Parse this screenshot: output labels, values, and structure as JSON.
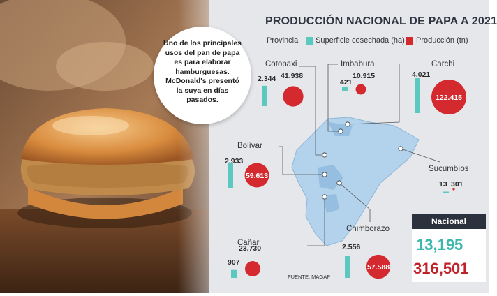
{
  "title": "PRODUCCIÓN NACIONAL DE PAPA  A 2021",
  "legend": {
    "provincia_label": "Provincia",
    "superficie_label": "Superficie cosechada (ha)",
    "produccion_label": "Producción (tn)"
  },
  "colors": {
    "superficie": "#5cc9c0",
    "produccion": "#d42a2f",
    "nacional_superficie": "#3cb7ad",
    "nacional_produccion": "#c0222a",
    "map": "#b3d3ec",
    "panel": "#e6e7ea"
  },
  "callout": "Uno de los principales usos del pan de papa es para elaborar hamburguesas. McDonald's presentó la suya en días pasados.",
  "chart_data": {
    "type": "bar",
    "title": "PRODUCCIÓN NACIONAL DE PAPA  A 2021",
    "categories": [
      "Cotopaxi",
      "Imbabura",
      "Carchi",
      "Bolívar",
      "Sucumbíos",
      "Cañar",
      "Chimborazo"
    ],
    "series": [
      {
        "name": "Superficie cosechada (ha)",
        "values": [
          2344,
          421,
          4021,
          2933,
          13,
          907,
          2556
        ],
        "labels": [
          "2.344",
          "421",
          "4.021",
          "2.933",
          "13",
          "907",
          "2.556"
        ]
      },
      {
        "name": "Producción (tn)",
        "values": [
          41938,
          10915,
          122415,
          59613,
          301,
          23730,
          57588
        ],
        "labels": [
          "41.938",
          "10.915",
          "122.415",
          "59.613",
          "301",
          "23.730",
          "57.588"
        ]
      }
    ],
    "nacional": {
      "label": "Nacional",
      "superficie": "13,195",
      "produccion": "316,501"
    }
  },
  "source": "FUENTE: MAGAP"
}
